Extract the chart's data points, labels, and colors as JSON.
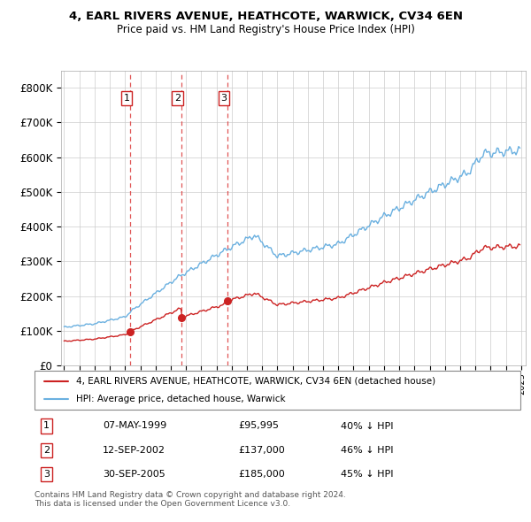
{
  "title1": "4, EARL RIVERS AVENUE, HEATHCOTE, WARWICK, CV34 6EN",
  "title2": "Price paid vs. HM Land Registry's House Price Index (HPI)",
  "legend_line1": "4, EARL RIVERS AVENUE, HEATHCOTE, WARWICK, CV34 6EN (detached house)",
  "legend_line2": "HPI: Average price, detached house, Warwick",
  "purchases": [
    {
      "label": "1",
      "date": "07-MAY-1999",
      "price": 95995,
      "note": "40% ↓ HPI",
      "x_year": 1999.35
    },
    {
      "label": "2",
      "date": "12-SEP-2002",
      "price": 137000,
      "note": "46% ↓ HPI",
      "x_year": 2002.7
    },
    {
      "label": "3",
      "date": "30-SEP-2005",
      "price": 185000,
      "note": "45% ↓ HPI",
      "x_year": 2005.75
    }
  ],
  "hpi_color": "#6ab0e0",
  "price_color": "#cc2222",
  "vline_color": "#dd4444",
  "marker_color": "#cc2222",
  "background_color": "#ffffff",
  "grid_color": "#cccccc",
  "ylim": [
    0,
    850000
  ],
  "xlim_start": 1994.8,
  "xlim_end": 2025.3,
  "footer": "Contains HM Land Registry data © Crown copyright and database right 2024.\nThis data is licensed under the Open Government Licence v3.0."
}
